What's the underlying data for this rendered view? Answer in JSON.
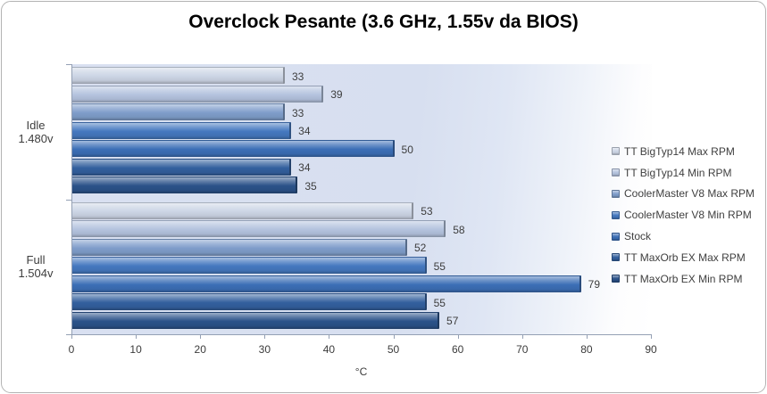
{
  "title": "Overclock Pesante (3.6 GHz, 1.55v da BIOS)",
  "chart_data": {
    "type": "bar",
    "orientation": "horizontal",
    "title": "Overclock Pesante (3.6 GHz, 1.55v da BIOS)",
    "xlabel": "°C",
    "ylabel": "",
    "xlim": [
      0,
      90
    ],
    "x_ticks": [
      0,
      10,
      20,
      30,
      40,
      50,
      60,
      70,
      80,
      90
    ],
    "grid": false,
    "legend_position": "right",
    "data_labels": true,
    "categories": [
      {
        "line1": "Idle",
        "line2": "1.480v"
      },
      {
        "line1": "Full",
        "line2": "1.504v"
      }
    ],
    "series": [
      {
        "name": "TT BigTyp14 Max RPM",
        "color": "#ccd5e5",
        "values": [
          33,
          53
        ]
      },
      {
        "name": "TT BigTyp14 Min RPM",
        "color": "#b4c3de",
        "values": [
          39,
          58
        ]
      },
      {
        "name": "CoolerMaster V8 Max RPM",
        "color": "#7f9dca",
        "values": [
          33,
          52
        ]
      },
      {
        "name": "CoolerMaster V8 Min RPM",
        "color": "#4578bf",
        "values": [
          34,
          55
        ]
      },
      {
        "name": "Stock",
        "color": "#3c6fb6",
        "values": [
          50,
          79
        ]
      },
      {
        "name": "TT MaxOrb EX Max RPM",
        "color": "#33609e",
        "values": [
          34,
          55
        ]
      },
      {
        "name": "TT MaxOrb EX Min RPM",
        "color": "#2b5289",
        "values": [
          35,
          57
        ]
      }
    ],
    "colors": {
      "axis": "#94a0b4",
      "text": "#3d3d3d",
      "plot_background": "#d8dff0",
      "chart_border": "#b3b3b3"
    }
  }
}
